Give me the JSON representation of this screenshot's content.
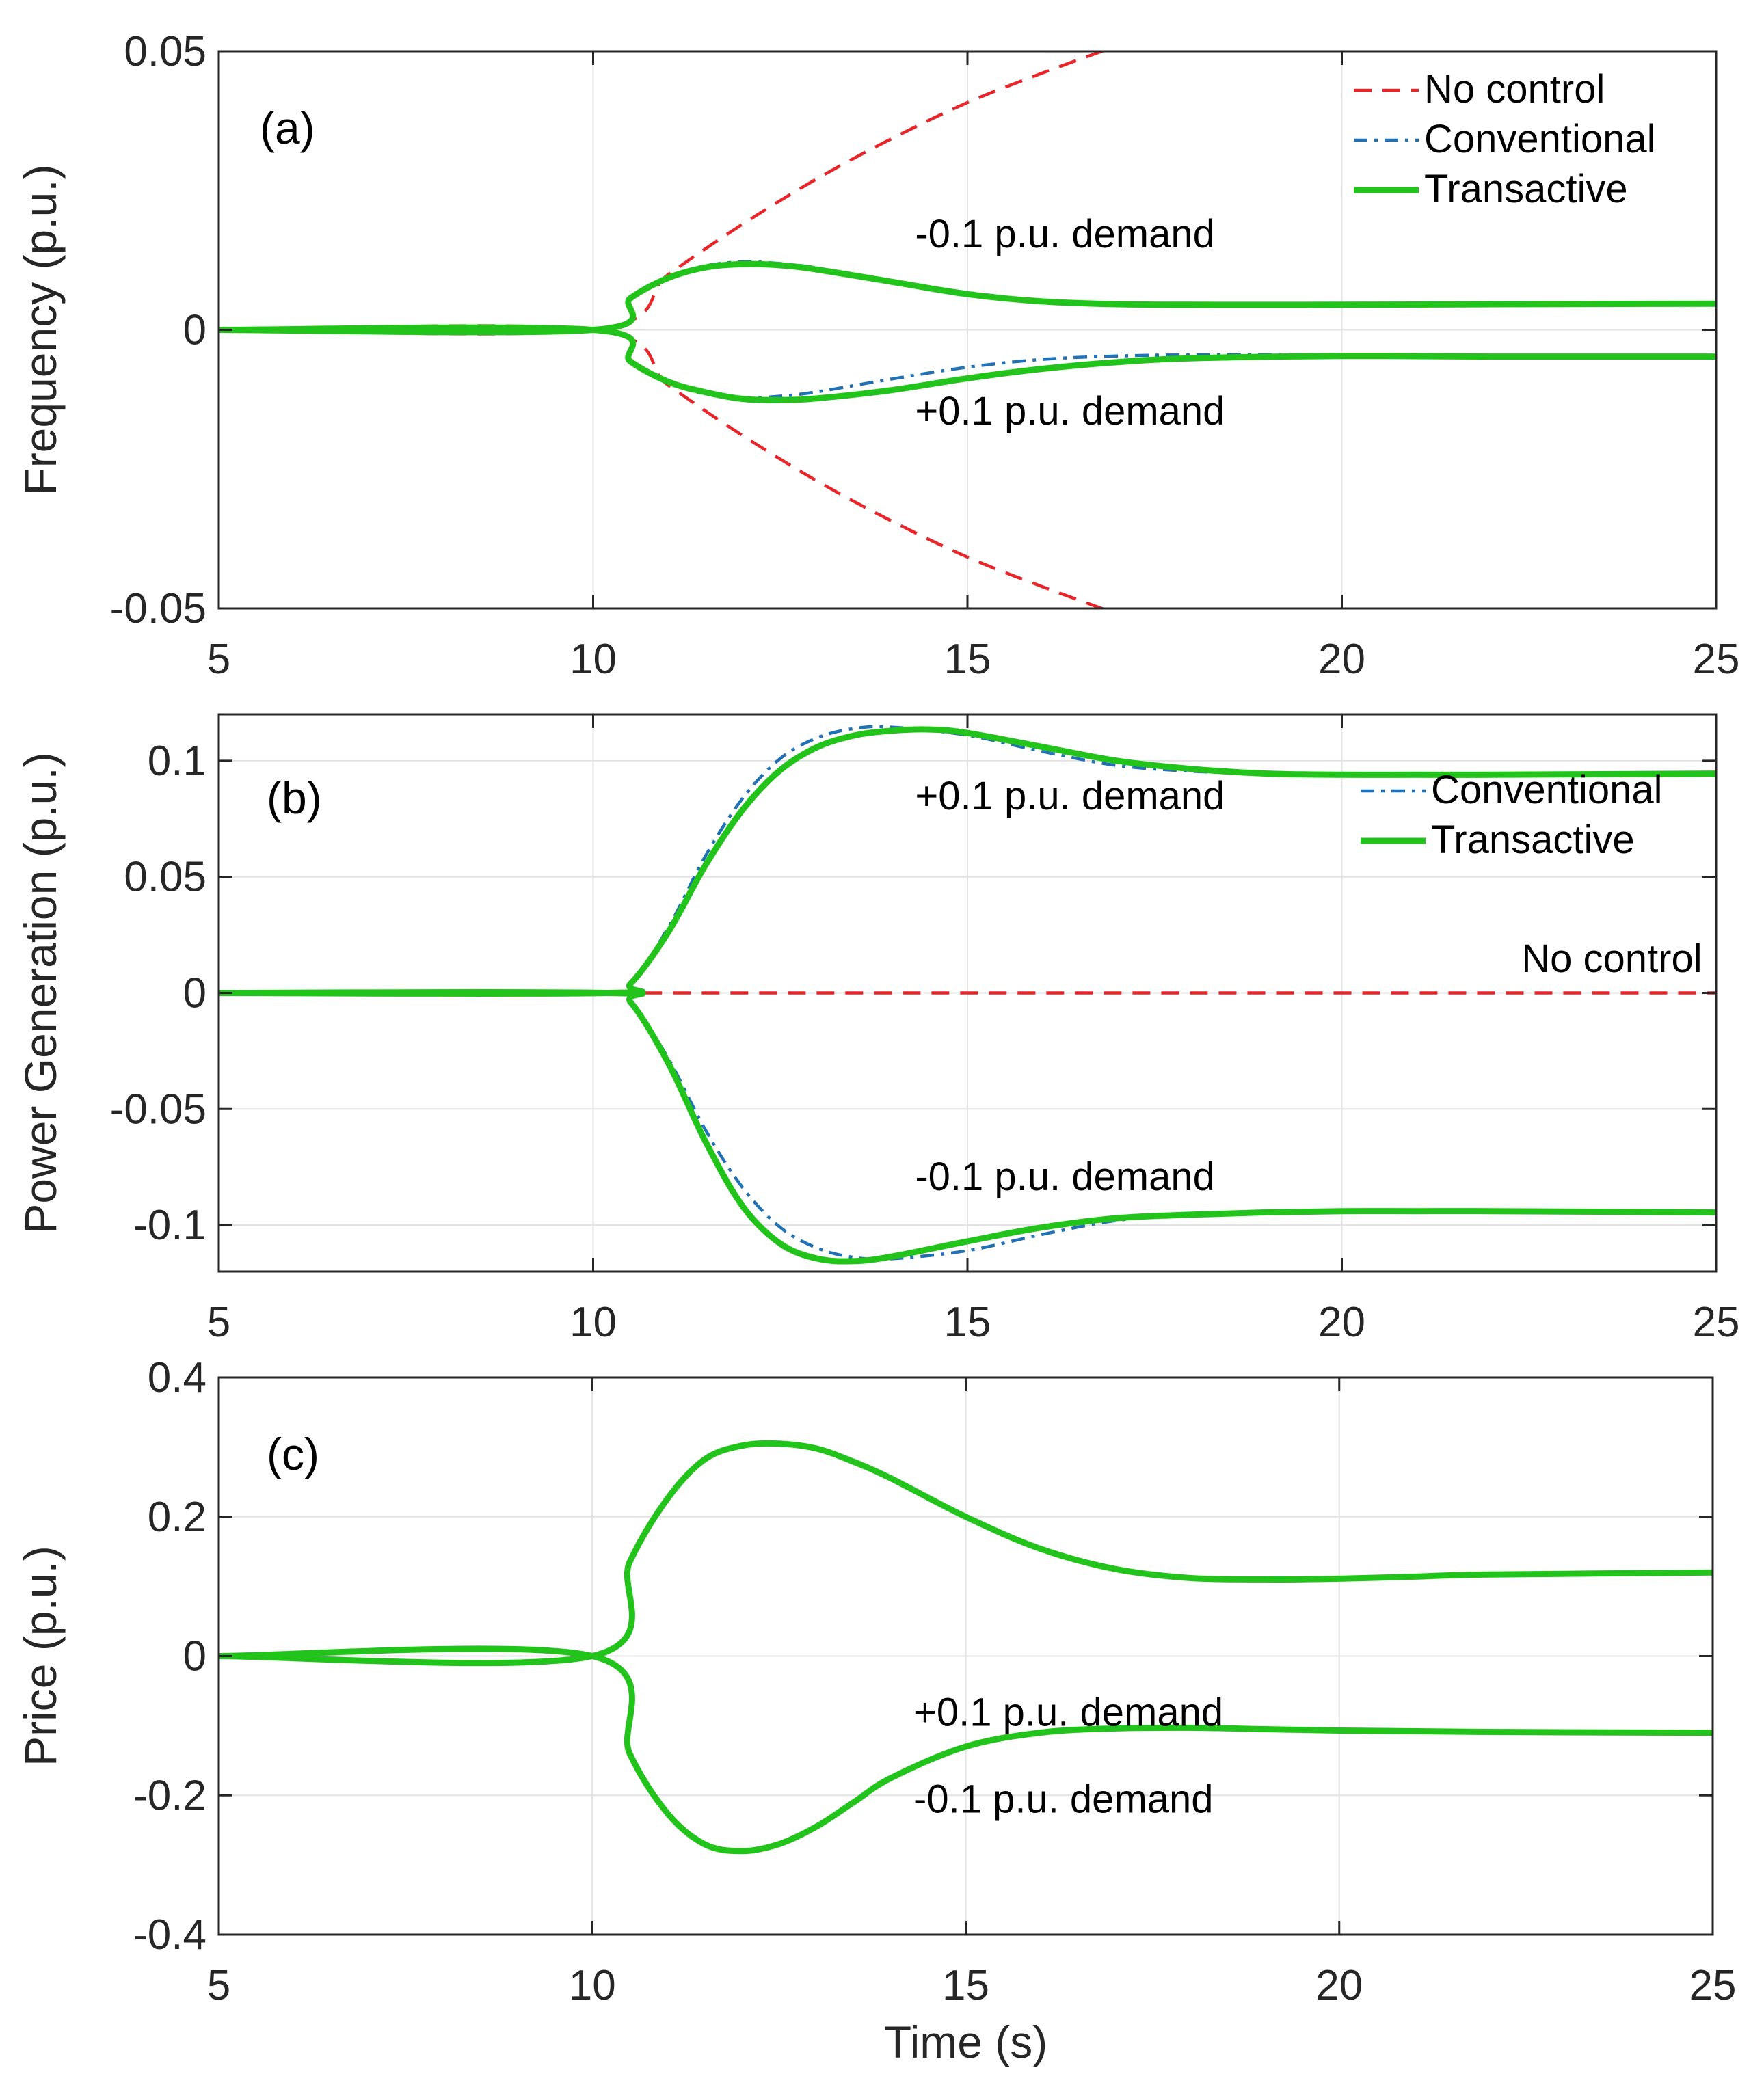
{
  "chart_data": [
    {
      "type": "line",
      "panel": "(a)",
      "ylabel": "Frequency (p.u.)",
      "xlabel": "",
      "xlim": [
        5,
        25
      ],
      "ylim": [
        -0.05,
        0.05
      ],
      "xticks": [
        5,
        10,
        15,
        20,
        25
      ],
      "xtick_labels": [
        "5",
        "10",
        "15",
        "20",
        "25"
      ],
      "yticks": [
        0.05,
        0,
        -0.05
      ],
      "ytick_labels": [
        "0.05",
        "0",
        "-0.05"
      ],
      "grid": true,
      "legend": {
        "placement": "top-right",
        "entries": [
          {
            "name": "No control",
            "style": "dashed",
            "color": "#e8262a"
          },
          {
            "name": "Conventional",
            "style": "dashdot",
            "color": "#2171b5"
          },
          {
            "name": "Transactive",
            "style": "solid",
            "color": "#22c41b"
          }
        ]
      },
      "annotations": [
        {
          "text": "-0.1 p.u. demand",
          "x": 14.3,
          "y": 0.0148
        },
        {
          "text": "+0.1 p.u. demand",
          "x": 14.3,
          "y": -0.017
        }
      ],
      "series": [
        {
          "name": "No control",
          "case": "-0.1 p.u. demand",
          "style": "dashed",
          "color": "#e8262a",
          "x": [
            5,
            10,
            11,
            12,
            13,
            14,
            15,
            16,
            16.9
          ],
          "y": [
            0,
            0,
            0.0099,
            0.019,
            0.0272,
            0.0344,
            0.0408,
            0.0461,
            0.0505
          ]
        },
        {
          "name": "No control",
          "case": "+0.1 p.u. demand",
          "style": "dashed",
          "color": "#e8262a",
          "x": [
            5,
            10,
            11,
            12,
            13,
            14,
            15,
            16,
            16.9
          ],
          "y": [
            0,
            0,
            -0.0099,
            -0.019,
            -0.0272,
            -0.0344,
            -0.0408,
            -0.0461,
            -0.0505
          ]
        },
        {
          "name": "Conventional",
          "case": "-0.1 p.u. demand",
          "style": "dashdot",
          "color": "#2171b5",
          "x": [
            5,
            10,
            10.5,
            11,
            11.5,
            12,
            12.5,
            13,
            14,
            15,
            16,
            17,
            18,
            20,
            22,
            25
          ],
          "y": [
            0,
            0,
            0.0058,
            0.0095,
            0.0115,
            0.0122,
            0.0119,
            0.0111,
            0.0088,
            0.0067,
            0.0053,
            0.0047,
            0.0045,
            0.0045,
            0.0046,
            0.0047
          ]
        },
        {
          "name": "Conventional",
          "case": "+0.1 p.u. demand",
          "style": "dashdot",
          "color": "#2171b5",
          "x": [
            5,
            10,
            10.5,
            11,
            11.5,
            12,
            12.5,
            13,
            14,
            15,
            16,
            17,
            18,
            20,
            22,
            25
          ],
          "y": [
            0,
            0,
            -0.0058,
            -0.0095,
            -0.0115,
            -0.0122,
            -0.0119,
            -0.0111,
            -0.0088,
            -0.0067,
            -0.0053,
            -0.0047,
            -0.0045,
            -0.0045,
            -0.0046,
            -0.0047
          ]
        },
        {
          "name": "Transactive",
          "case": "-0.1 p.u. demand",
          "style": "solid",
          "color": "#22c41b",
          "x": [
            5,
            10,
            10.5,
            11,
            11.5,
            12,
            12.5,
            13,
            14,
            15,
            16,
            17,
            18,
            20,
            22,
            25
          ],
          "y": [
            0,
            0,
            0.0057,
            0.0093,
            0.0112,
            0.0118,
            0.0116,
            0.0108,
            0.0086,
            0.0064,
            0.0051,
            0.0046,
            0.0045,
            0.0045,
            0.0046,
            0.0047
          ]
        },
        {
          "name": "Transactive",
          "case": "+0.1 p.u. demand",
          "style": "solid",
          "color": "#22c41b",
          "x": [
            5,
            10,
            10.5,
            11,
            11.5,
            12,
            12.5,
            13,
            14,
            15,
            16,
            17,
            18,
            20,
            22,
            25
          ],
          "y": [
            0,
            0,
            -0.0057,
            -0.0093,
            -0.0112,
            -0.0124,
            -0.0126,
            -0.0123,
            -0.0108,
            -0.0087,
            -0.007,
            -0.0058,
            -0.0051,
            -0.0047,
            -0.0048,
            -0.0048
          ]
        }
      ]
    },
    {
      "type": "line",
      "panel": "(b)",
      "ylabel": "Power Generation (p.u.)",
      "xlabel": "",
      "xlim": [
        5,
        25
      ],
      "ylim": [
        -0.12,
        0.12
      ],
      "xticks": [
        5,
        10,
        15,
        20,
        25
      ],
      "xtick_labels": [
        "5",
        "10",
        "15",
        "20",
        "25"
      ],
      "yticks": [
        0.1,
        0.05,
        0,
        -0.05,
        -0.1
      ],
      "ytick_labels": [
        "0.1",
        "0.05",
        "0",
        "-0.05",
        "-0.1"
      ],
      "grid": true,
      "legend": {
        "placement": "top-right",
        "entries": [
          {
            "name": "Conventional",
            "style": "dashdot",
            "color": "#2171b5"
          },
          {
            "name": "Transactive",
            "style": "solid",
            "color": "#22c41b"
          }
        ]
      },
      "annotations": [
        {
          "text": "+0.1 p.u. demand",
          "x": 14.3,
          "y": 0.079
        },
        {
          "text": "No control",
          "x": 22.4,
          "y": 0.009
        },
        {
          "text": "-0.1 p.u. demand",
          "x": 14.3,
          "y": -0.085
        }
      ],
      "series": [
        {
          "name": "No control",
          "case": "both",
          "style": "dashed",
          "color": "#e8262a",
          "x": [
            10.3,
            25
          ],
          "y": [
            0,
            0
          ]
        },
        {
          "name": "Conventional",
          "case": "+0.1 p.u. demand",
          "style": "dashdot",
          "color": "#2171b5",
          "x": [
            5,
            10.2,
            10.5,
            11,
            11.5,
            12,
            12.5,
            13,
            13.5,
            14,
            15,
            16,
            17,
            18,
            19,
            20,
            21,
            22,
            25
          ],
          "y": [
            0,
            0,
            0.004,
            0.028,
            0.059,
            0.084,
            0.101,
            0.11,
            0.114,
            0.1145,
            0.111,
            0.104,
            0.098,
            0.0955,
            0.0945,
            0.094,
            0.094,
            0.094,
            0.0945
          ]
        },
        {
          "name": "Conventional",
          "case": "-0.1 p.u. demand",
          "style": "dashdot",
          "color": "#2171b5",
          "x": [
            5,
            10.2,
            10.5,
            11,
            11.5,
            12,
            12.5,
            13,
            13.5,
            14,
            15,
            16,
            17,
            18,
            19,
            20,
            21,
            22,
            25
          ],
          "y": [
            0,
            0,
            -0.004,
            -0.028,
            -0.059,
            -0.084,
            -0.101,
            -0.11,
            -0.114,
            -0.1145,
            -0.111,
            -0.104,
            -0.098,
            -0.0955,
            -0.0945,
            -0.094,
            -0.094,
            -0.094,
            -0.0945
          ]
        },
        {
          "name": "Transactive",
          "case": "+0.1 p.u. demand",
          "style": "solid",
          "color": "#22c41b",
          "x": [
            5,
            10.2,
            10.5,
            11,
            11.5,
            12,
            12.5,
            13,
            13.5,
            14,
            14.5,
            15,
            16,
            17,
            18,
            19,
            20,
            21,
            22,
            25
          ],
          "y": [
            0,
            0,
            0.004,
            0.026,
            0.055,
            0.079,
            0.096,
            0.106,
            0.111,
            0.113,
            0.1135,
            0.112,
            0.106,
            0.1,
            0.0965,
            0.0945,
            0.094,
            0.094,
            0.094,
            0.0945
          ]
        },
        {
          "name": "Transactive",
          "case": "-0.1 p.u. demand",
          "style": "solid",
          "color": "#22c41b",
          "x": [
            5,
            10.2,
            10.5,
            11,
            11.5,
            12,
            12.5,
            13,
            13.5,
            14,
            15,
            16,
            17,
            18,
            19,
            20,
            21,
            22,
            25
          ],
          "y": [
            0,
            0,
            -0.004,
            -0.03,
            -0.064,
            -0.092,
            -0.108,
            -0.1145,
            -0.1155,
            -0.1135,
            -0.107,
            -0.101,
            -0.097,
            -0.0955,
            -0.0945,
            -0.094,
            -0.094,
            -0.094,
            -0.0945
          ]
        }
      ]
    },
    {
      "type": "line",
      "panel": "(c)",
      "ylabel": "Price (p.u.)",
      "xlabel": "Time (s)",
      "xlim": [
        5,
        25
      ],
      "ylim": [
        -0.4,
        0.4
      ],
      "xticks": [
        5,
        10,
        15,
        20,
        25
      ],
      "xtick_labels": [
        "5",
        "10",
        "15",
        "20",
        "25"
      ],
      "yticks": [
        0.4,
        0.2,
        0,
        -0.2,
        -0.4
      ],
      "ytick_labels": [
        "0.4",
        "0.2",
        "0",
        "-0.2",
        "-0.4"
      ],
      "grid": true,
      "annotations": [
        {
          "text": "+0.1 p.u. demand",
          "x": 14.3,
          "y": -0.1
        },
        {
          "text": "-0.1 p.u. demand",
          "x": 14.3,
          "y": -0.225
        }
      ],
      "series": [
        {
          "name": "Transactive",
          "case": "+0.1 p.u. demand",
          "style": "solid",
          "color": "#22c41b",
          "x": [
            5,
            10,
            10.5,
            11,
            11.5,
            12,
            12.5,
            13,
            13.5,
            14,
            15,
            16,
            17,
            18,
            19,
            20,
            21,
            22,
            25
          ],
          "y": [
            0,
            0,
            0.135,
            0.225,
            0.282,
            0.302,
            0.305,
            0.298,
            0.279,
            0.255,
            0.2,
            0.154,
            0.125,
            0.112,
            0.11,
            0.111,
            0.114,
            0.117,
            0.12
          ]
        },
        {
          "name": "Transactive",
          "case": "-0.1 p.u. demand",
          "style": "solid",
          "color": "#22c41b",
          "x": [
            5,
            10,
            10.5,
            11,
            11.5,
            12,
            12.5,
            13,
            13.5,
            14,
            15,
            16,
            17,
            18,
            19,
            20,
            22,
            25
          ],
          "y": [
            0,
            0,
            -0.14,
            -0.225,
            -0.27,
            -0.28,
            -0.27,
            -0.245,
            -0.21,
            -0.175,
            -0.13,
            -0.11,
            -0.104,
            -0.103,
            -0.105,
            -0.107,
            -0.109,
            -0.11
          ]
        }
      ]
    }
  ]
}
